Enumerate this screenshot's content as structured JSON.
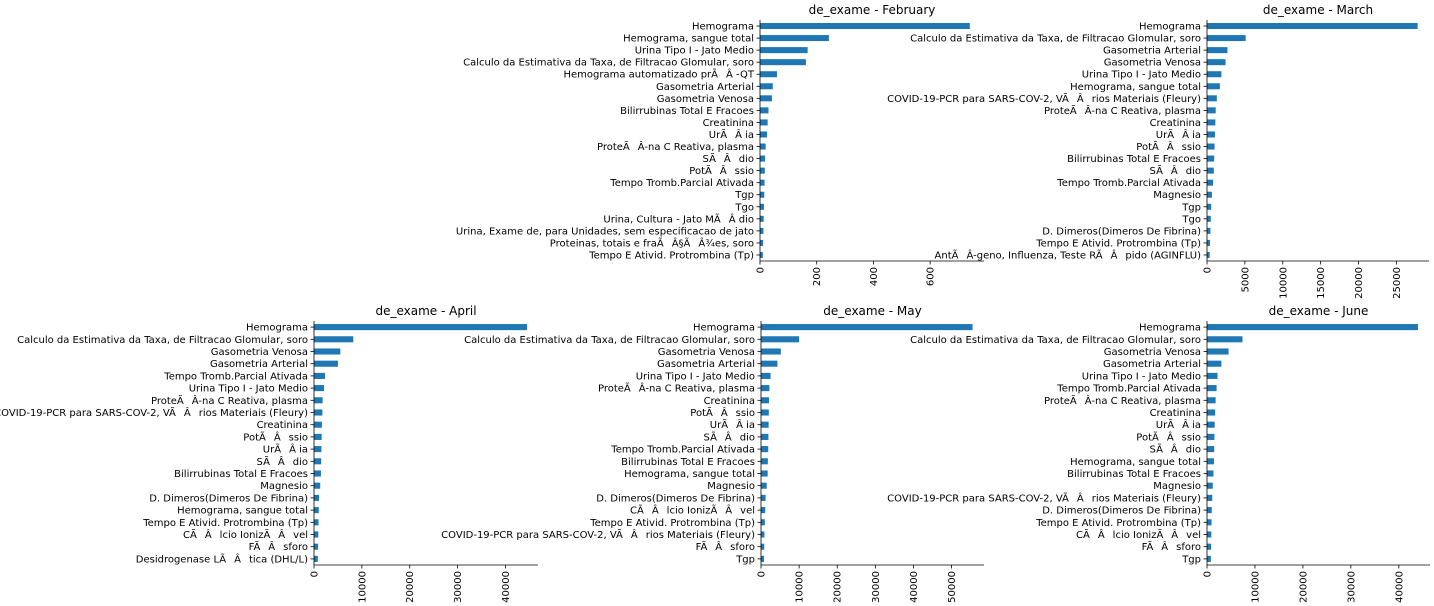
{
  "chart_data": [
    {
      "type": "bar",
      "orientation": "horizontal",
      "title": "de_exame - February",
      "categories": [
        "Hemograma",
        "Hemograma, sangue total",
        "Urina Tipo I - Jato Medio",
        "Calculo da Estimativa da Taxa, de Filtracao Glomular, soro",
        "Hemograma automatizado prÃÂ -QT",
        "Gasometria Arterial",
        "Gasometria Venosa",
        "Bilirrubinas Total E Fracoes",
        "Creatinina",
        "UrÃÂ ia",
        "ProteÃÂ-na C Reativa, plasma",
        "SÃÂdio",
        "PotÃÂssio",
        "Tempo Tromb.Parcial Ativada",
        "Tgp",
        "Tgo",
        "Urina, Cultura - Jato MÃÂ dio",
        "Urina, Exame de, para Unidades, sem especificacao de jato",
        "Proteinas, totais e fraÃÂ§ÃÂ¾es, soro",
        "Tempo E Ativid. Protrombina (Tp)"
      ],
      "values": [
        740,
        243,
        168,
        162,
        60,
        45,
        42,
        30,
        27,
        25,
        20,
        18,
        17,
        16,
        15,
        14,
        13,
        12,
        11,
        10
      ],
      "xlim": [
        0,
        790
      ],
      "xticks": [
        0,
        200,
        400,
        600
      ]
    },
    {
      "type": "bar",
      "orientation": "horizontal",
      "title": "de_exame - March",
      "categories": [
        "Hemograma",
        "Calculo da Estimativa da Taxa, de Filtracao Glomular, soro",
        "Gasometria Arterial",
        "Gasometria Venosa",
        "Urina Tipo I - Jato Medio",
        "Hemograma, sangue total",
        "COVID-19-PCR para SARS-COV-2, VÃÂrios Materiais (Fleury)",
        "ProteÃÂ-na C Reativa, plasma",
        "Creatinina",
        "UrÃÂ ia",
        "PotÃÂssio",
        "Bilirrubinas Total E Fracoes",
        "SÃÂdio",
        "Tempo Tromb.Parcial Ativada",
        "Magnesio",
        "Tgp",
        "Tgo",
        "D. Dimeros(Dimeros De Fibrina)",
        "Tempo E Ativid. Protrombina (Tp)",
        "AntÃÂ-geno, Influenza, Teste RÃÂpido (AGINFLU)"
      ],
      "values": [
        27800,
        5100,
        2700,
        2450,
        1900,
        1700,
        1300,
        1150,
        1100,
        1050,
        1000,
        950,
        900,
        800,
        650,
        550,
        500,
        450,
        400,
        350
      ],
      "xlim": [
        0,
        29300
      ],
      "xticks": [
        0,
        5000,
        10000,
        15000,
        20000,
        25000
      ]
    },
    {
      "type": "bar",
      "orientation": "horizontal",
      "title": "de_exame - April",
      "categories": [
        "Hemograma",
        "Calculo da Estimativa da Taxa, de Filtracao Glomular, soro",
        "Gasometria Venosa",
        "Gasometria Arterial",
        "Tempo Tromb.Parcial Ativada",
        "Urina Tipo I - Jato Medio",
        "ProteÃÂ-na C Reativa, plasma",
        "COVID-19-PCR para SARS-COV-2, VÃÂrios Materiais (Fleury)",
        "Creatinina",
        "PotÃÂssio",
        "UrÃÂ ia",
        "SÃÂdio",
        "Bilirrubinas Total E Fracoes",
        "Magnesio",
        "D. Dimeros(Dimeros De Fibrina)",
        "Hemograma, sangue total",
        "Tempo E Ativid. Protrombina (Tp)",
        "CÃÂlcio IonizÃÂvel",
        "FÃÂsforo",
        "Desidrogenase LÃÂtica (DHL/L)"
      ],
      "values": [
        44500,
        8200,
        5500,
        5000,
        2300,
        2100,
        1800,
        1750,
        1650,
        1600,
        1550,
        1500,
        1450,
        1300,
        1050,
        1000,
        950,
        900,
        850,
        800
      ],
      "xlim": [
        0,
        46800
      ],
      "xticks": [
        0,
        10000,
        20000,
        30000,
        40000
      ]
    },
    {
      "type": "bar",
      "orientation": "horizontal",
      "title": "de_exame - May",
      "categories": [
        "Hemograma",
        "Calculo da Estimativa da Taxa, de Filtracao Glomular, soro",
        "Gasometria Venosa",
        "Gasometria Arterial",
        "Urina Tipo I - Jato Medio",
        "ProteÃÂ-na C Reativa, plasma",
        "Creatinina",
        "PotÃÂssio",
        "UrÃÂ ia",
        "SÃÂdio",
        "Tempo Tromb.Parcial Ativada",
        "Bilirrubinas Total E Fracoes",
        "Hemograma, sangue total",
        "Magnesio",
        "D. Dimeros(Dimeros De Fibrina)",
        "CÃÂlcio IonizÃÂvel",
        "Tempo E Ativid. Protrombina (Tp)",
        "COVID-19-PCR para SARS-COV-2, VÃÂrios Materiais (Fleury)",
        "FÃÂsforo",
        "Tgp"
      ],
      "values": [
        55500,
        10000,
        5200,
        4300,
        2500,
        2200,
        2100,
        2050,
        2000,
        1950,
        1900,
        1800,
        1750,
        1500,
        1200,
        1100,
        1000,
        900,
        850,
        800
      ],
      "xlim": [
        0,
        58500
      ],
      "xticks": [
        0,
        10000,
        20000,
        30000,
        40000,
        50000
      ]
    },
    {
      "type": "bar",
      "orientation": "horizontal",
      "title": "de_exame - June",
      "categories": [
        "Hemograma",
        "Calculo da Estimativa da Taxa, de Filtracao Glomular, soro",
        "Gasometria Venosa",
        "Gasometria Arterial",
        "Urina Tipo I - Jato Medio",
        "Tempo Tromb.Parcial Ativada",
        "ProteÃÂ-na C Reativa, plasma",
        "Creatinina",
        "UrÃÂ ia",
        "PotÃÂssio",
        "SÃÂdio",
        "Hemograma, sangue total",
        "Bilirrubinas Total E Fracoes",
        "Magnesio",
        "COVID-19-PCR para SARS-COV-2, VÃÂrios Materiais (Fleury)",
        "D. Dimeros(Dimeros De Fibrina)",
        "Tempo E Ativid. Protrombina (Tp)",
        "CÃÂlcio IonizÃÂvel",
        "FÃÂsforo",
        "Tgp"
      ],
      "values": [
        44000,
        7400,
        4500,
        3000,
        2200,
        2000,
        1800,
        1700,
        1600,
        1550,
        1500,
        1450,
        1350,
        1200,
        1100,
        1000,
        950,
        900,
        850,
        800
      ],
      "xlim": [
        0,
        46500
      ],
      "xticks": [
        0,
        10000,
        20000,
        30000,
        40000
      ]
    }
  ],
  "colors": {
    "bar": "#1f77b4",
    "axis": "#000000"
  }
}
